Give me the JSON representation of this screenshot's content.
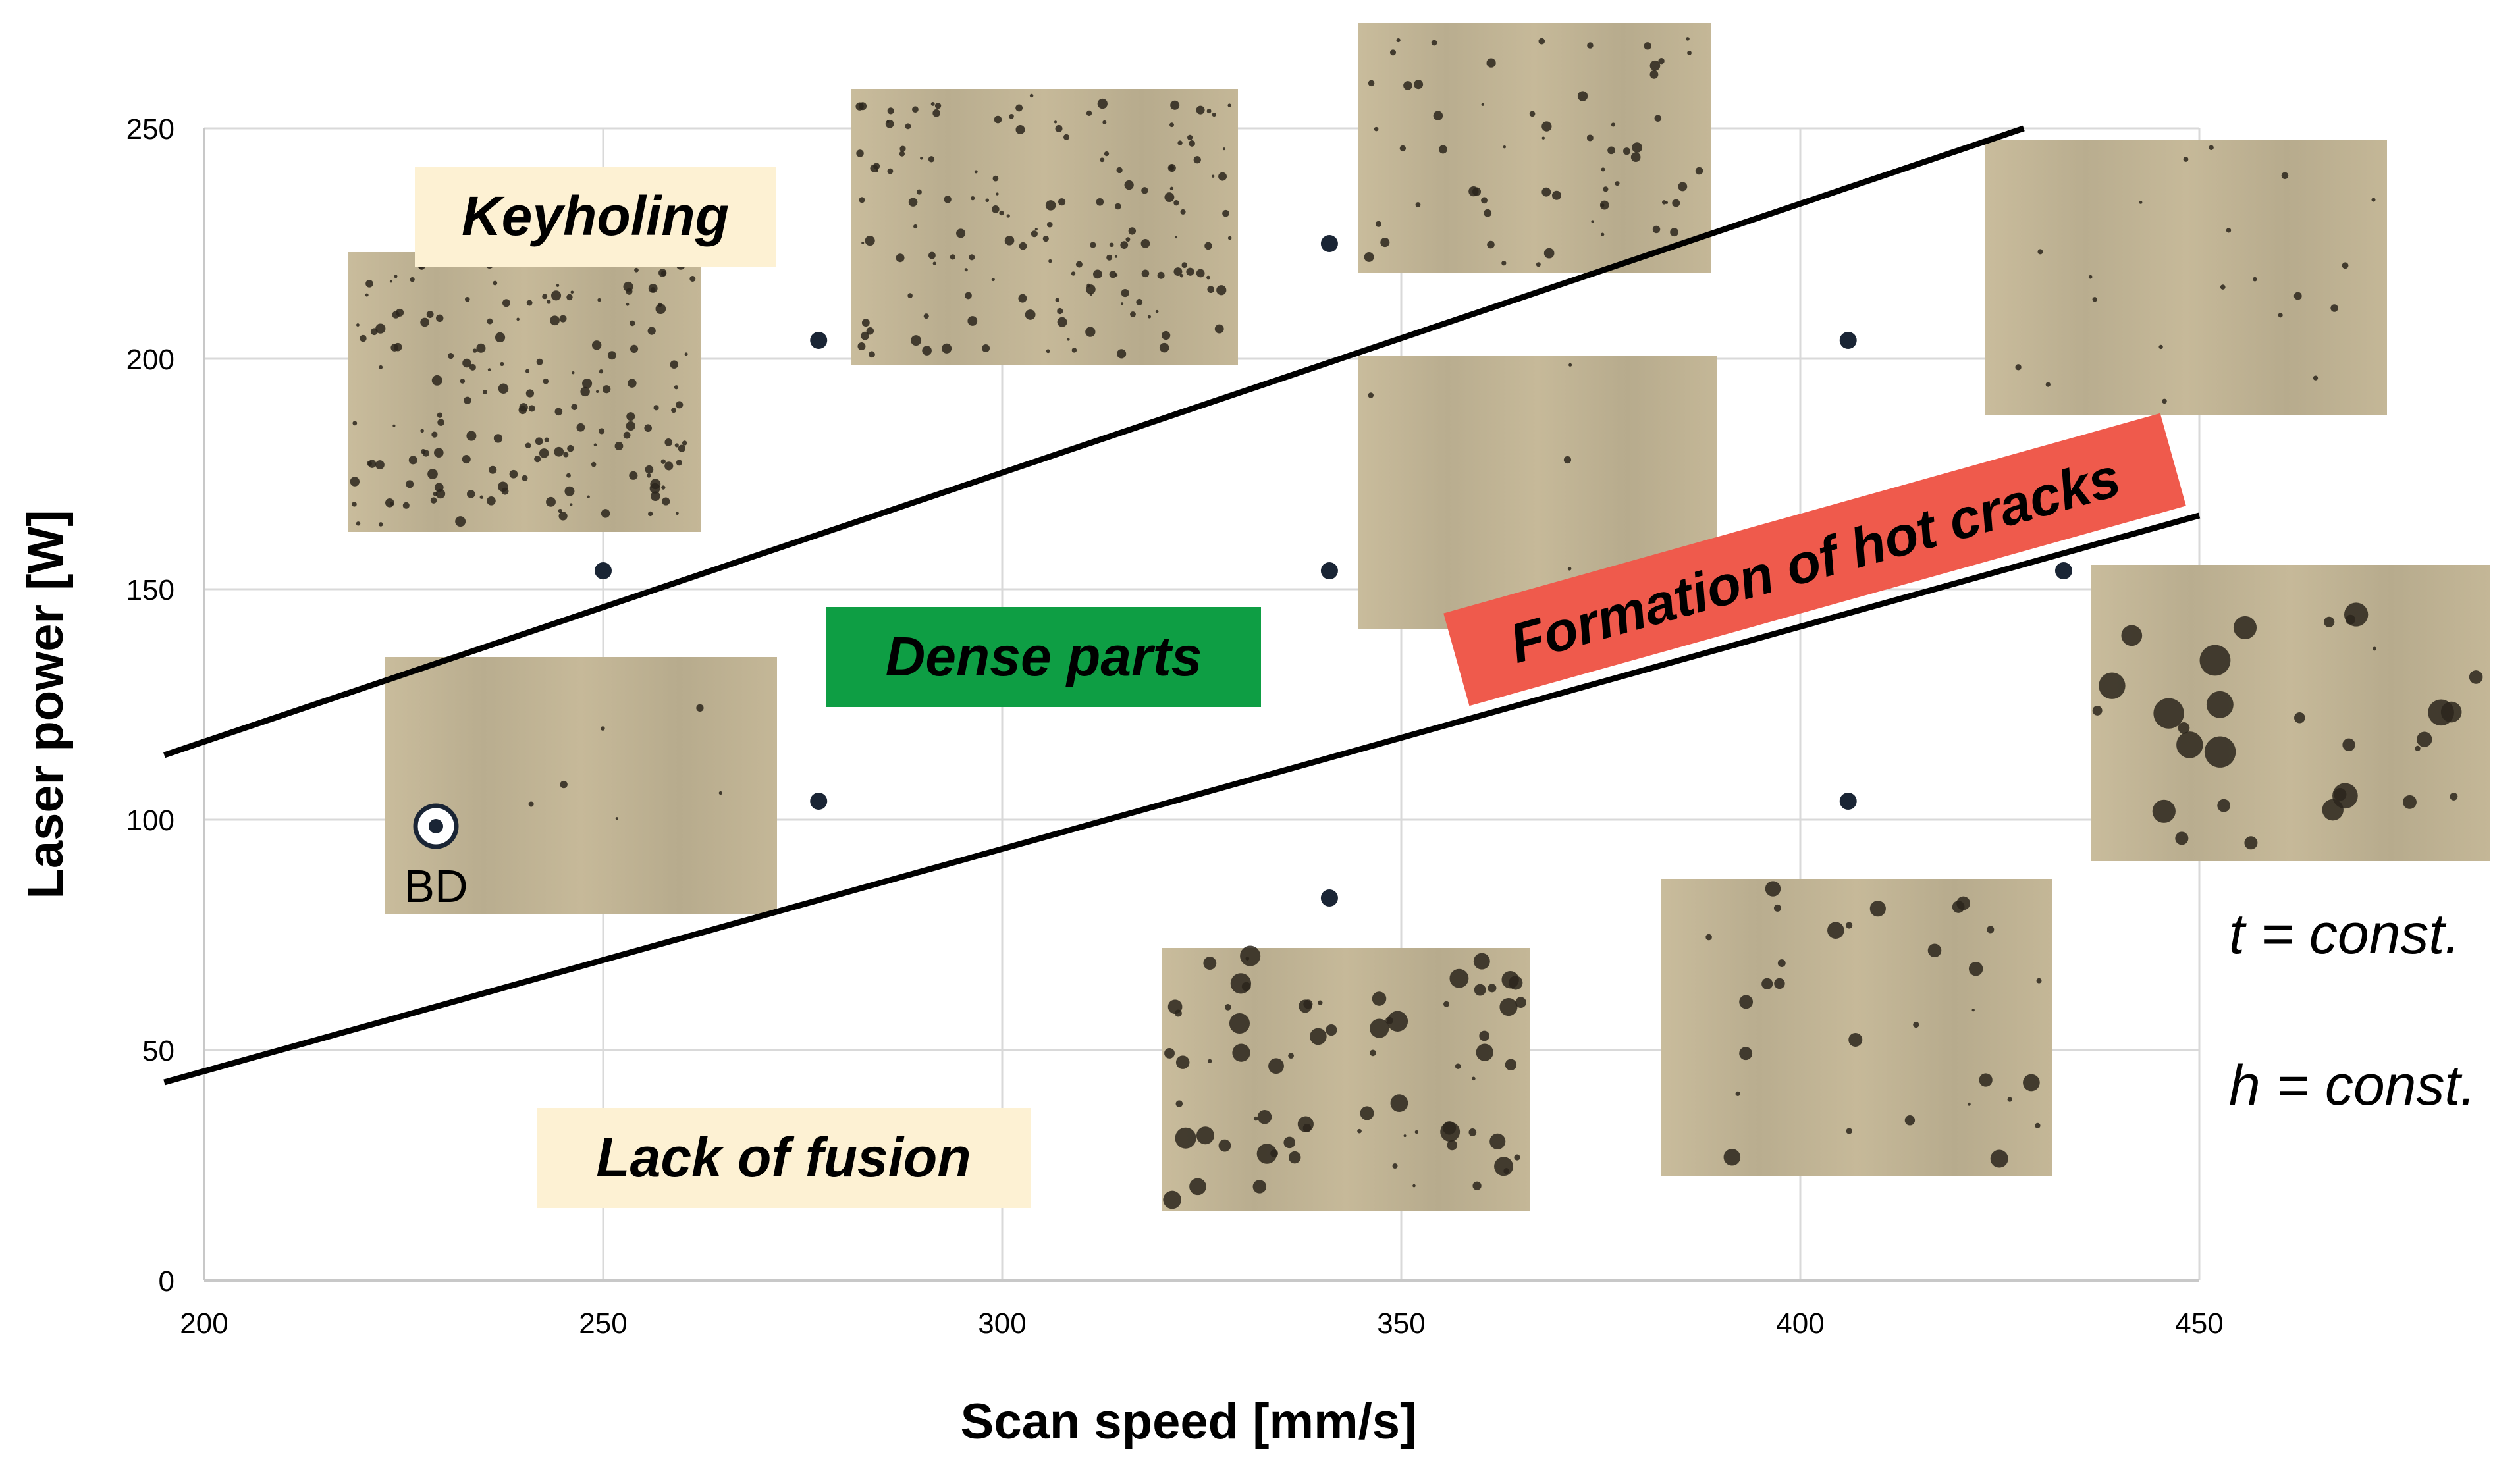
{
  "chart_data": {
    "type": "scatter",
    "title": "",
    "xlabel": "Scan speed [mm/s]",
    "ylabel": "Laser power [W]",
    "xlim": [
      200,
      450
    ],
    "ylim": [
      0,
      250
    ],
    "x_ticks": [
      "200",
      "250",
      "300",
      "350",
      "400",
      "450"
    ],
    "y_ticks": [
      "0",
      "50",
      "100",
      "150",
      "200",
      "250"
    ],
    "grid": true,
    "points": [
      {
        "x": 250,
        "y": 154
      },
      {
        "x": 277,
        "y": 204
      },
      {
        "x": 277,
        "y": 104
      },
      {
        "x": 341,
        "y": 225
      },
      {
        "x": 341,
        "y": 154
      },
      {
        "x": 341,
        "y": 83
      },
      {
        "x": 406,
        "y": 204
      },
      {
        "x": 406,
        "y": 104
      },
      {
        "x": 433,
        "y": 154
      }
    ],
    "boundary_lines": [
      {
        "from": [
          195,
          114
        ],
        "to": [
          428,
          250
        ]
      },
      {
        "from": [
          195,
          43
        ],
        "to": [
          450,
          166
        ]
      }
    ],
    "regions": {
      "keyholing": "Keyholing",
      "dense": "Dense parts",
      "hot_cracks": "Formation of hot cracks",
      "lack_of_fusion": "Lack of fusion"
    },
    "annotations": {
      "build_direction": "BD",
      "t_const": "t = const.",
      "h_const": "h = const."
    },
    "colors": {
      "keyholing_bg": "#fdf1d3",
      "lack_of_fusion_bg": "#fdf1d3",
      "dense_bg": "#0e9e44",
      "hot_cracks_bg": "#ef5a4c",
      "micrograph": "#c3b597",
      "marker": "#1a2535"
    }
  }
}
